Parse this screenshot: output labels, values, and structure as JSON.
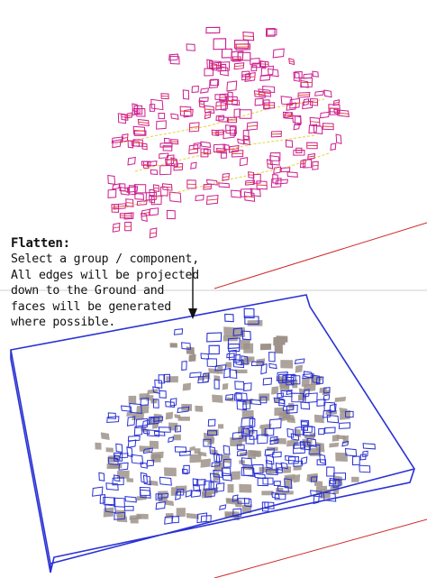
{
  "colors": {
    "background": "#ffffff",
    "top_outline": "#cc1f8f",
    "top_highlight": "#e63a2a",
    "top_road": "#e8d23a",
    "bottom_outline": "#2a32d4",
    "bottom_shadow": "#9e938b",
    "horizon_line": "#cfcfcf",
    "axis_red": "#cf2b2b",
    "arrow": "#111111",
    "text": "#111111"
  },
  "icons": {
    "arrow": "arrow-down-icon"
  },
  "instructions": {
    "title": "Flatten:",
    "lines": [
      "Select a group / component,",
      "All edges will be projected",
      "down to the Ground and",
      "faces will be generated",
      "where possible."
    ]
  }
}
